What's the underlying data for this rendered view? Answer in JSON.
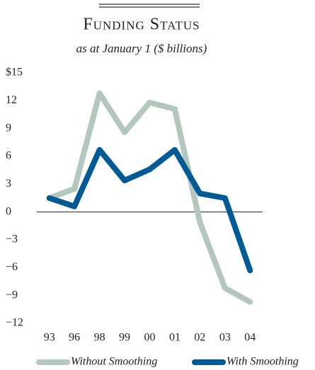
{
  "chart_data": {
    "type": "line",
    "title": "Funding Status",
    "subtitle": "as at January 1 ($ billions)",
    "categories": [
      "93",
      "96",
      "98",
      "99",
      "00",
      "01",
      "02",
      "03",
      "04"
    ],
    "series": [
      {
        "name": "Without Smoothing",
        "color": "#b3c7bd",
        "values": [
          1.5,
          2.5,
          12.8,
          8.6,
          11.8,
          11.1,
          -1.1,
          -8.2,
          -9.7
        ]
      },
      {
        "name": "With Smoothing",
        "color": "#005a96",
        "values": [
          1.5,
          0.6,
          6.7,
          3.4,
          4.6,
          6.7,
          2.0,
          1.5,
          -6.3
        ]
      }
    ],
    "ylim": [
      -12,
      15
    ],
    "yticks": [
      {
        "value": 15,
        "label": "$15"
      },
      12,
      9,
      6,
      3,
      0,
      {
        "value": -3,
        "label": "−3"
      },
      {
        "value": -6,
        "label": "−6"
      },
      {
        "value": -9,
        "label": "−9"
      },
      {
        "value": -12,
        "label": "−12"
      }
    ],
    "legend": "bottom"
  }
}
